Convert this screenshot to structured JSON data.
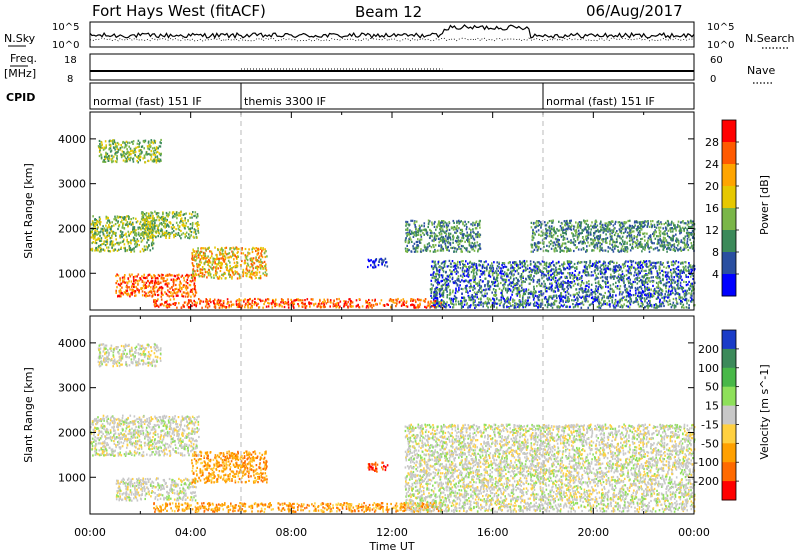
{
  "header": {
    "title": "Fort Hays West (fitACF)",
    "beam": "Beam 12",
    "date": "06/Aug/2017"
  },
  "strips": {
    "nsky_label": "N.Sky",
    "nsearch_label": "N.Search",
    "freq_label_1": "Freq.",
    "freq_label_2": "[MHz]",
    "nave_label": "Nave",
    "cpid_label": "CPID",
    "noise_left_ticks": [
      "10^5",
      "10^0"
    ],
    "noise_right_ticks": [
      "10^5",
      "10^0"
    ],
    "freq_left_ticks": [
      "18",
      "8"
    ],
    "freq_right_ticks": [
      "60",
      "0"
    ]
  },
  "cpid_segments": [
    {
      "label": "normal (fast) 151 IF",
      "start_hour": 0,
      "end_hour": 6
    },
    {
      "label": "themis 3300 IF",
      "start_hour": 6,
      "end_hour": 18
    },
    {
      "label": "normal (fast) 151 IF",
      "start_hour": 18,
      "end_hour": 24
    }
  ],
  "axes": {
    "xlabel": "Time UT",
    "x_ticks": [
      "00:00",
      "04:00",
      "08:00",
      "12:00",
      "16:00",
      "20:00",
      "00:00"
    ],
    "ylabel": "Slant Range [km]",
    "y_ticks": [
      "4000",
      "3000",
      "2000",
      "1000"
    ]
  },
  "power_colorbar": {
    "label": "Power [dB]",
    "ticks": [
      "28",
      "24",
      "20",
      "16",
      "12",
      "8",
      "4"
    ],
    "colors": [
      "#ff0000",
      "#ff5a00",
      "#ffa500",
      "#e6c800",
      "#7ab648",
      "#3c8a5a",
      "#2a4fa0",
      "#0000ff"
    ]
  },
  "velocity_colorbar": {
    "label": "Velocity [m s^-1]",
    "ticks": [
      "200",
      "100",
      "50",
      "15",
      "-15",
      "-50",
      "-100",
      "-200"
    ],
    "colors": [
      "#1a3cc8",
      "#3c8a5a",
      "#48b848",
      "#8ee05a",
      "#c8c8c8",
      "#ffd040",
      "#ffa000",
      "#ff6a00",
      "#ff0000"
    ]
  },
  "chart_data": [
    {
      "type": "heatmap",
      "title": "Power",
      "xlabel": "Time UT",
      "ylabel": "Slant Range [km]",
      "xlim": [
        0,
        24
      ],
      "ylim": [
        180,
        4600
      ],
      "colorbar": "Power [dB]",
      "scatter_regions": [
        {
          "t0": 0.3,
          "t1": 2.8,
          "r0": 3500,
          "r1": 4000,
          "power": "12-20"
        },
        {
          "t0": 0.0,
          "t1": 2.5,
          "r0": 1500,
          "r1": 2300,
          "power": "12-20"
        },
        {
          "t0": 2.0,
          "t1": 4.3,
          "r0": 1800,
          "r1": 2400,
          "power": "12-20"
        },
        {
          "t0": 1.0,
          "t1": 4.2,
          "r0": 500,
          "r1": 1000,
          "power": "20-30"
        },
        {
          "t0": 4.0,
          "t1": 7.0,
          "r0": 900,
          "r1": 1600,
          "power": "16-24"
        },
        {
          "t0": 2.5,
          "t1": 14.0,
          "r0": 250,
          "r1": 450,
          "power": "20-30"
        },
        {
          "t0": 11.0,
          "t1": 11.8,
          "r0": 1150,
          "r1": 1350,
          "power": "4-8"
        },
        {
          "t0": 12.5,
          "t1": 15.5,
          "r0": 1500,
          "r1": 2200,
          "power": "8-16"
        },
        {
          "t0": 13.5,
          "t1": 24.0,
          "r0": 250,
          "r1": 1300,
          "power": "4-16"
        },
        {
          "t0": 17.5,
          "t1": 24.0,
          "r0": 1500,
          "r1": 2200,
          "power": "8-16"
        }
      ]
    },
    {
      "type": "heatmap",
      "title": "Velocity",
      "xlabel": "Time UT",
      "ylabel": "Slant Range [km]",
      "xlim": [
        0,
        24
      ],
      "ylim": [
        180,
        4600
      ],
      "colorbar": "Velocity [m s^-1]",
      "scatter_regions": [
        {
          "t0": 0.3,
          "t1": 2.8,
          "r0": 3500,
          "r1": 4000,
          "velocity": "-15 to 15"
        },
        {
          "t0": 0.0,
          "t1": 4.3,
          "r0": 1500,
          "r1": 2400,
          "velocity": "-15 to 15"
        },
        {
          "t0": 1.0,
          "t1": 4.2,
          "r0": 500,
          "r1": 1000,
          "velocity": "-15 to 15"
        },
        {
          "t0": 4.0,
          "t1": 7.0,
          "r0": 900,
          "r1": 1600,
          "velocity": "-50 to -100"
        },
        {
          "t0": 2.5,
          "t1": 14.0,
          "r0": 250,
          "r1": 450,
          "velocity": "-50 to -100"
        },
        {
          "t0": 11.0,
          "t1": 11.8,
          "r0": 1150,
          "r1": 1350,
          "velocity": "-100 to -200"
        },
        {
          "t0": 12.5,
          "t1": 24.0,
          "r0": 250,
          "r1": 2200,
          "velocity": "-15 to 15"
        }
      ]
    }
  ]
}
